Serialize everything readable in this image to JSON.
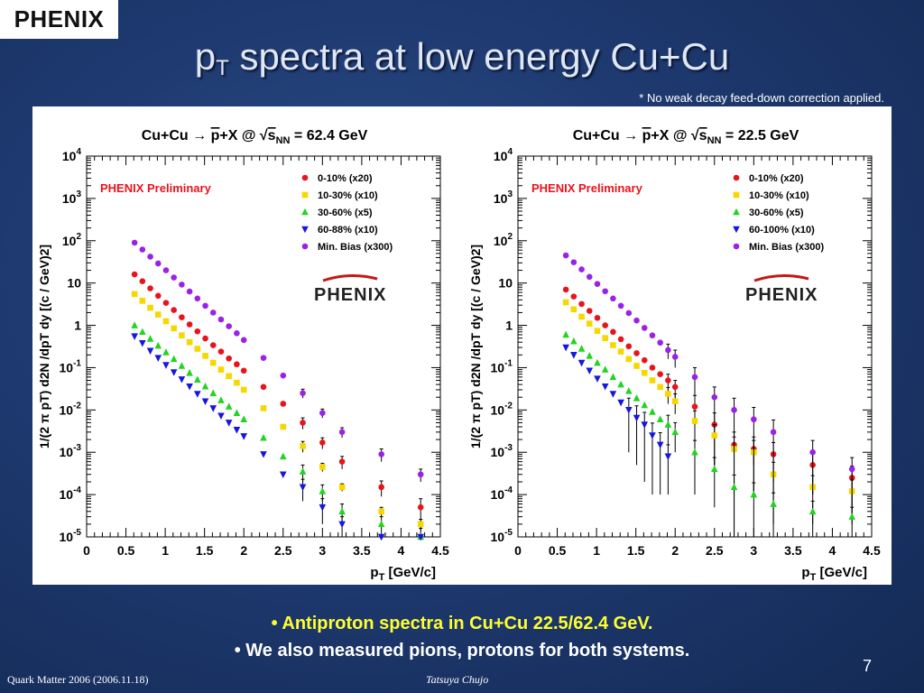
{
  "slide": {
    "logo": "PHENIX",
    "title_main": "p",
    "title_sub": "T",
    "title_rest": " spectra at low energy Cu+Cu",
    "note": "* No weak decay feed-down correction applied.",
    "bullet1": "• Antiproton spectra in Cu+Cu 22.5/62.4 GeV.",
    "bullet2": "• We also measured pions, protons for both systems.",
    "page_number": "7",
    "footer_left": "Quark Matter 2006 (2006.11.18)",
    "footer_center": "Tatsuya Chujo"
  },
  "chart_data": [
    {
      "type": "scatter",
      "title": "Cu+Cu → p̄+X @ √sNN = 62.4 GeV",
      "title_parts": {
        "left": "Cu+Cu",
        "arrow": "→",
        "pbar": "p",
        "mid": "+X @",
        "sqrt": "√",
        "s": "s",
        "nn": "NN",
        "right": " = 62.4 GeV"
      },
      "watermark": "PHENIX Preliminary",
      "logo": "PHENIX",
      "xlabel": "pT [GeV/c]",
      "xlabel_parts": {
        "p": "p",
        "sub": "T",
        "rest": " [GeV/c]"
      },
      "ylabel": "1/(2 π pT) d2N /dpT dy [(c / GeV)2]",
      "xlim": [
        0,
        4.5
      ],
      "ylim": [
        1e-05,
        10000.0
      ],
      "y_scale": "log",
      "x_ticks": [
        "0",
        "0.5",
        "1",
        "1.5",
        "2",
        "2.5",
        "3",
        "3.5",
        "4",
        "4.5"
      ],
      "legend_position": "top-right",
      "series": [
        {
          "name": "0-10% (x20)",
          "color": "#e8141c",
          "marker": "circle",
          "x": [
            0.61,
            0.71,
            0.81,
            0.91,
            1.01,
            1.11,
            1.21,
            1.31,
            1.41,
            1.51,
            1.61,
            1.71,
            1.81,
            1.91,
            2.0,
            2.25,
            2.5,
            2.75,
            3.0,
            3.25,
            3.75,
            4.25
          ],
          "y": [
            16,
            11,
            7.5,
            5,
            3.4,
            2.3,
            1.55,
            1.05,
            0.72,
            0.49,
            0.34,
            0.24,
            0.165,
            0.12,
            0.085,
            0.035,
            0.014,
            0.005,
            0.0017,
            0.0006,
            0.00015,
            5e-05
          ],
          "err": [
            0,
            0,
            0,
            0,
            0,
            0,
            0,
            0,
            0,
            0,
            0,
            0,
            0,
            0,
            0,
            0,
            0,
            0.0015,
            0.0005,
            0.0002,
            6e-05,
            3e-05
          ]
        },
        {
          "name": "10-30% (x10)",
          "color": "#f5d800",
          "marker": "square",
          "x": [
            0.61,
            0.71,
            0.81,
            0.91,
            1.01,
            1.11,
            1.21,
            1.31,
            1.41,
            1.51,
            1.61,
            1.71,
            1.81,
            1.91,
            2.0,
            2.25,
            2.5,
            2.75,
            3.0,
            3.25,
            3.75,
            4.25
          ],
          "y": [
            5.5,
            3.8,
            2.6,
            1.8,
            1.25,
            0.85,
            0.58,
            0.4,
            0.28,
            0.19,
            0.13,
            0.09,
            0.063,
            0.044,
            0.03,
            0.011,
            0.004,
            0.0014,
            0.00045,
            0.00015,
            4e-05,
            2e-05
          ],
          "err": [
            0,
            0,
            0,
            0,
            0,
            0,
            0,
            0,
            0,
            0,
            0,
            0,
            0,
            0,
            0,
            0,
            0,
            0.0004,
            0.0001,
            3e-05,
            1e-05,
            6e-06
          ]
        },
        {
          "name": "30-60% (x5)",
          "color": "#22d422",
          "marker": "triangle-up",
          "x": [
            0.61,
            0.71,
            0.81,
            0.91,
            1.01,
            1.11,
            1.21,
            1.31,
            1.41,
            1.51,
            1.61,
            1.71,
            1.81,
            1.91,
            2.0,
            2.25,
            2.5,
            2.75,
            3.0,
            3.25,
            3.75,
            4.25
          ],
          "y": [
            1.0,
            0.7,
            0.48,
            0.33,
            0.23,
            0.16,
            0.11,
            0.075,
            0.052,
            0.036,
            0.025,
            0.017,
            0.012,
            0.0085,
            0.006,
            0.0022,
            0.0008,
            0.00035,
            0.00012,
            4e-05,
            2e-05,
            1e-05
          ],
          "err": [
            0,
            0,
            0,
            0,
            0,
            0,
            0,
            0,
            0,
            0,
            0,
            0,
            0,
            0,
            0,
            0,
            0,
            0.00015,
            5e-05,
            2e-05,
            1e-05,
            6e-06
          ]
        },
        {
          "name": "60-88% (x10)",
          "color": "#1616e0",
          "marker": "triangle-down",
          "x": [
            0.61,
            0.71,
            0.81,
            0.91,
            1.01,
            1.11,
            1.21,
            1.31,
            1.41,
            1.51,
            1.61,
            1.71,
            1.81,
            1.91,
            2.0,
            2.25,
            2.5,
            2.75,
            3.0,
            3.25,
            3.75,
            4.25
          ],
          "y": [
            0.55,
            0.38,
            0.25,
            0.17,
            0.115,
            0.078,
            0.053,
            0.036,
            0.024,
            0.016,
            0.011,
            0.0073,
            0.005,
            0.0034,
            0.0024,
            0.0009,
            0.0003,
            0.00015,
            5e-05,
            2e-05,
            8e-06,
            4e-06
          ],
          "err": [
            0,
            0,
            0,
            0,
            0,
            0,
            0,
            0,
            0,
            0,
            0,
            0,
            0,
            0,
            0,
            0,
            0,
            8e-05,
            3e-05,
            1e-05,
            0,
            0
          ]
        },
        {
          "name": "Min. Bias (x300)",
          "color": "#9a22e8",
          "marker": "circle",
          "x": [
            0.61,
            0.71,
            0.81,
            0.91,
            1.01,
            1.11,
            1.21,
            1.31,
            1.41,
            1.51,
            1.61,
            1.71,
            1.81,
            1.91,
            2.0,
            2.25,
            2.5,
            2.75,
            3.0,
            3.25,
            3.75,
            4.25
          ],
          "y": [
            90,
            62,
            42,
            29,
            20,
            13.5,
            9.2,
            6.3,
            4.3,
            2.9,
            2.0,
            1.38,
            0.95,
            0.65,
            0.45,
            0.17,
            0.065,
            0.025,
            0.0085,
            0.003,
            0.0009,
            0.0003
          ],
          "err": [
            0,
            0,
            0,
            0,
            0,
            0,
            0,
            0,
            0,
            0,
            0,
            0,
            0,
            0,
            0,
            0,
            0,
            0.006,
            0.002,
            0.0008,
            0.0003,
            0.0001
          ]
        }
      ]
    },
    {
      "type": "scatter",
      "title": "Cu+Cu → p̄+X @ √sNN = 22.5 GeV",
      "title_parts": {
        "left": "Cu+Cu",
        "arrow": "→",
        "pbar": "p",
        "mid": "+X @",
        "sqrt": "√",
        "s": "s",
        "nn": "NN",
        "right": " = 22.5 GeV"
      },
      "watermark": "PHENIX Preliminary",
      "logo": "PHENIX",
      "xlabel": "pT [GeV/c]",
      "xlabel_parts": {
        "p": "p",
        "sub": "T",
        "rest": " [GeV/c]"
      },
      "ylabel": "1/(2 π pT) d2N /dpT dy [(c / GeV)2]",
      "xlim": [
        0,
        4.5
      ],
      "ylim": [
        1e-05,
        10000.0
      ],
      "y_scale": "log",
      "x_ticks": [
        "0",
        "0.5",
        "1",
        "1.5",
        "2",
        "2.5",
        "3",
        "3.5",
        "4",
        "4.5"
      ],
      "legend_position": "top-right",
      "series": [
        {
          "name": "0-10% (x20)",
          "color": "#e8141c",
          "marker": "circle",
          "x": [
            0.61,
            0.71,
            0.81,
            0.91,
            1.01,
            1.11,
            1.21,
            1.31,
            1.41,
            1.51,
            1.61,
            1.71,
            1.81,
            1.91,
            2.0,
            2.25,
            2.5,
            2.75,
            3.0,
            3.25,
            3.75,
            4.25
          ],
          "y": [
            7,
            4.8,
            3.2,
            2.2,
            1.5,
            1.0,
            0.7,
            0.47,
            0.32,
            0.22,
            0.15,
            0.1,
            0.07,
            0.05,
            0.035,
            0.012,
            0.0045,
            0.0015,
            0.0012,
            0.0009,
            0.0005,
            0.00025
          ],
          "err": [
            0,
            0,
            0,
            0,
            0,
            0,
            0,
            0,
            0,
            0,
            0,
            0,
            0,
            0.02,
            0.015,
            0.01,
            0.004,
            0.0015,
            0.0011,
            0.0008,
            0.0004,
            0.00022
          ]
        },
        {
          "name": "10-30% (x10)",
          "color": "#f5d800",
          "marker": "square",
          "x": [
            0.61,
            0.71,
            0.81,
            0.91,
            1.01,
            1.11,
            1.21,
            1.31,
            1.41,
            1.51,
            1.61,
            1.71,
            1.81,
            1.91,
            2.0,
            2.25,
            2.5,
            2.75,
            3.0,
            3.25,
            3.75,
            4.25
          ],
          "y": [
            3.5,
            2.4,
            1.6,
            1.1,
            0.74,
            0.5,
            0.34,
            0.24,
            0.16,
            0.11,
            0.075,
            0.05,
            0.035,
            0.024,
            0.016,
            0.0055,
            0.0025,
            0.0012,
            0.001,
            0.0003,
            0.00015,
            0.00012
          ],
          "err": [
            0,
            0,
            0,
            0,
            0,
            0,
            0,
            0,
            0,
            0,
            0,
            0,
            0,
            0.01,
            0.008,
            0.004,
            0.002,
            0.0011,
            0.0009,
            0.00028,
            0.00013,
            0.0001
          ]
        },
        {
          "name": "30-60% (x5)",
          "color": "#22d422",
          "marker": "triangle-up",
          "x": [
            0.61,
            0.71,
            0.81,
            0.91,
            1.01,
            1.11,
            1.21,
            1.31,
            1.41,
            1.51,
            1.61,
            1.71,
            1.81,
            1.91,
            2.0,
            2.25,
            2.5,
            2.75,
            3.0,
            3.25,
            3.75,
            4.25
          ],
          "y": [
            0.6,
            0.42,
            0.28,
            0.19,
            0.13,
            0.09,
            0.06,
            0.04,
            0.028,
            0.019,
            0.013,
            0.009,
            0.006,
            0.0045,
            0.003,
            0.001,
            0.0004,
            0.00015,
            0.0001,
            6e-05,
            4e-05,
            3e-05
          ],
          "err": [
            0,
            0,
            0,
            0,
            0,
            0,
            0,
            0,
            0,
            0,
            0,
            0,
            0,
            0.003,
            0.002,
            0.0009,
            0.00035,
            0.00014,
            9e-05,
            5e-05,
            3e-05,
            2e-05
          ]
        },
        {
          "name": "60-100% (x10)",
          "color": "#1616e0",
          "marker": "triangle-down",
          "x": [
            0.61,
            0.71,
            0.81,
            0.91,
            1.01,
            1.11,
            1.21,
            1.31,
            1.41,
            1.51,
            1.61,
            1.71,
            1.81,
            1.91
          ],
          "y": [
            0.3,
            0.2,
            0.13,
            0.085,
            0.055,
            0.036,
            0.024,
            0.015,
            0.01,
            0.0065,
            0.0045,
            0.0025,
            0.0015,
            0.0008
          ],
          "err": [
            0,
            0,
            0,
            0,
            0,
            0,
            0,
            0,
            0.009,
            0.006,
            0.0043,
            0.0024,
            0.0014,
            0.0007
          ]
        },
        {
          "name": "Min. Bias (x300)",
          "color": "#9a22e8",
          "marker": "circle",
          "x": [
            0.61,
            0.71,
            0.81,
            0.91,
            1.01,
            1.11,
            1.21,
            1.31,
            1.41,
            1.51,
            1.61,
            1.71,
            1.81,
            1.91,
            2.0,
            2.25,
            2.5,
            2.75,
            3.0,
            3.25,
            3.75,
            4.25
          ],
          "y": [
            45,
            31,
            21,
            14,
            9.5,
            6.4,
            4.3,
            2.9,
            1.95,
            1.3,
            0.87,
            0.58,
            0.39,
            0.26,
            0.18,
            0.06,
            0.02,
            0.01,
            0.006,
            0.003,
            0.001,
            0.0004
          ],
          "err": [
            0,
            0,
            0,
            0,
            0,
            0,
            0,
            0,
            0,
            0,
            0,
            0,
            0,
            0.1,
            0.08,
            0.04,
            0.015,
            0.009,
            0.0055,
            0.0028,
            0.0009,
            0.00035
          ]
        }
      ]
    }
  ]
}
